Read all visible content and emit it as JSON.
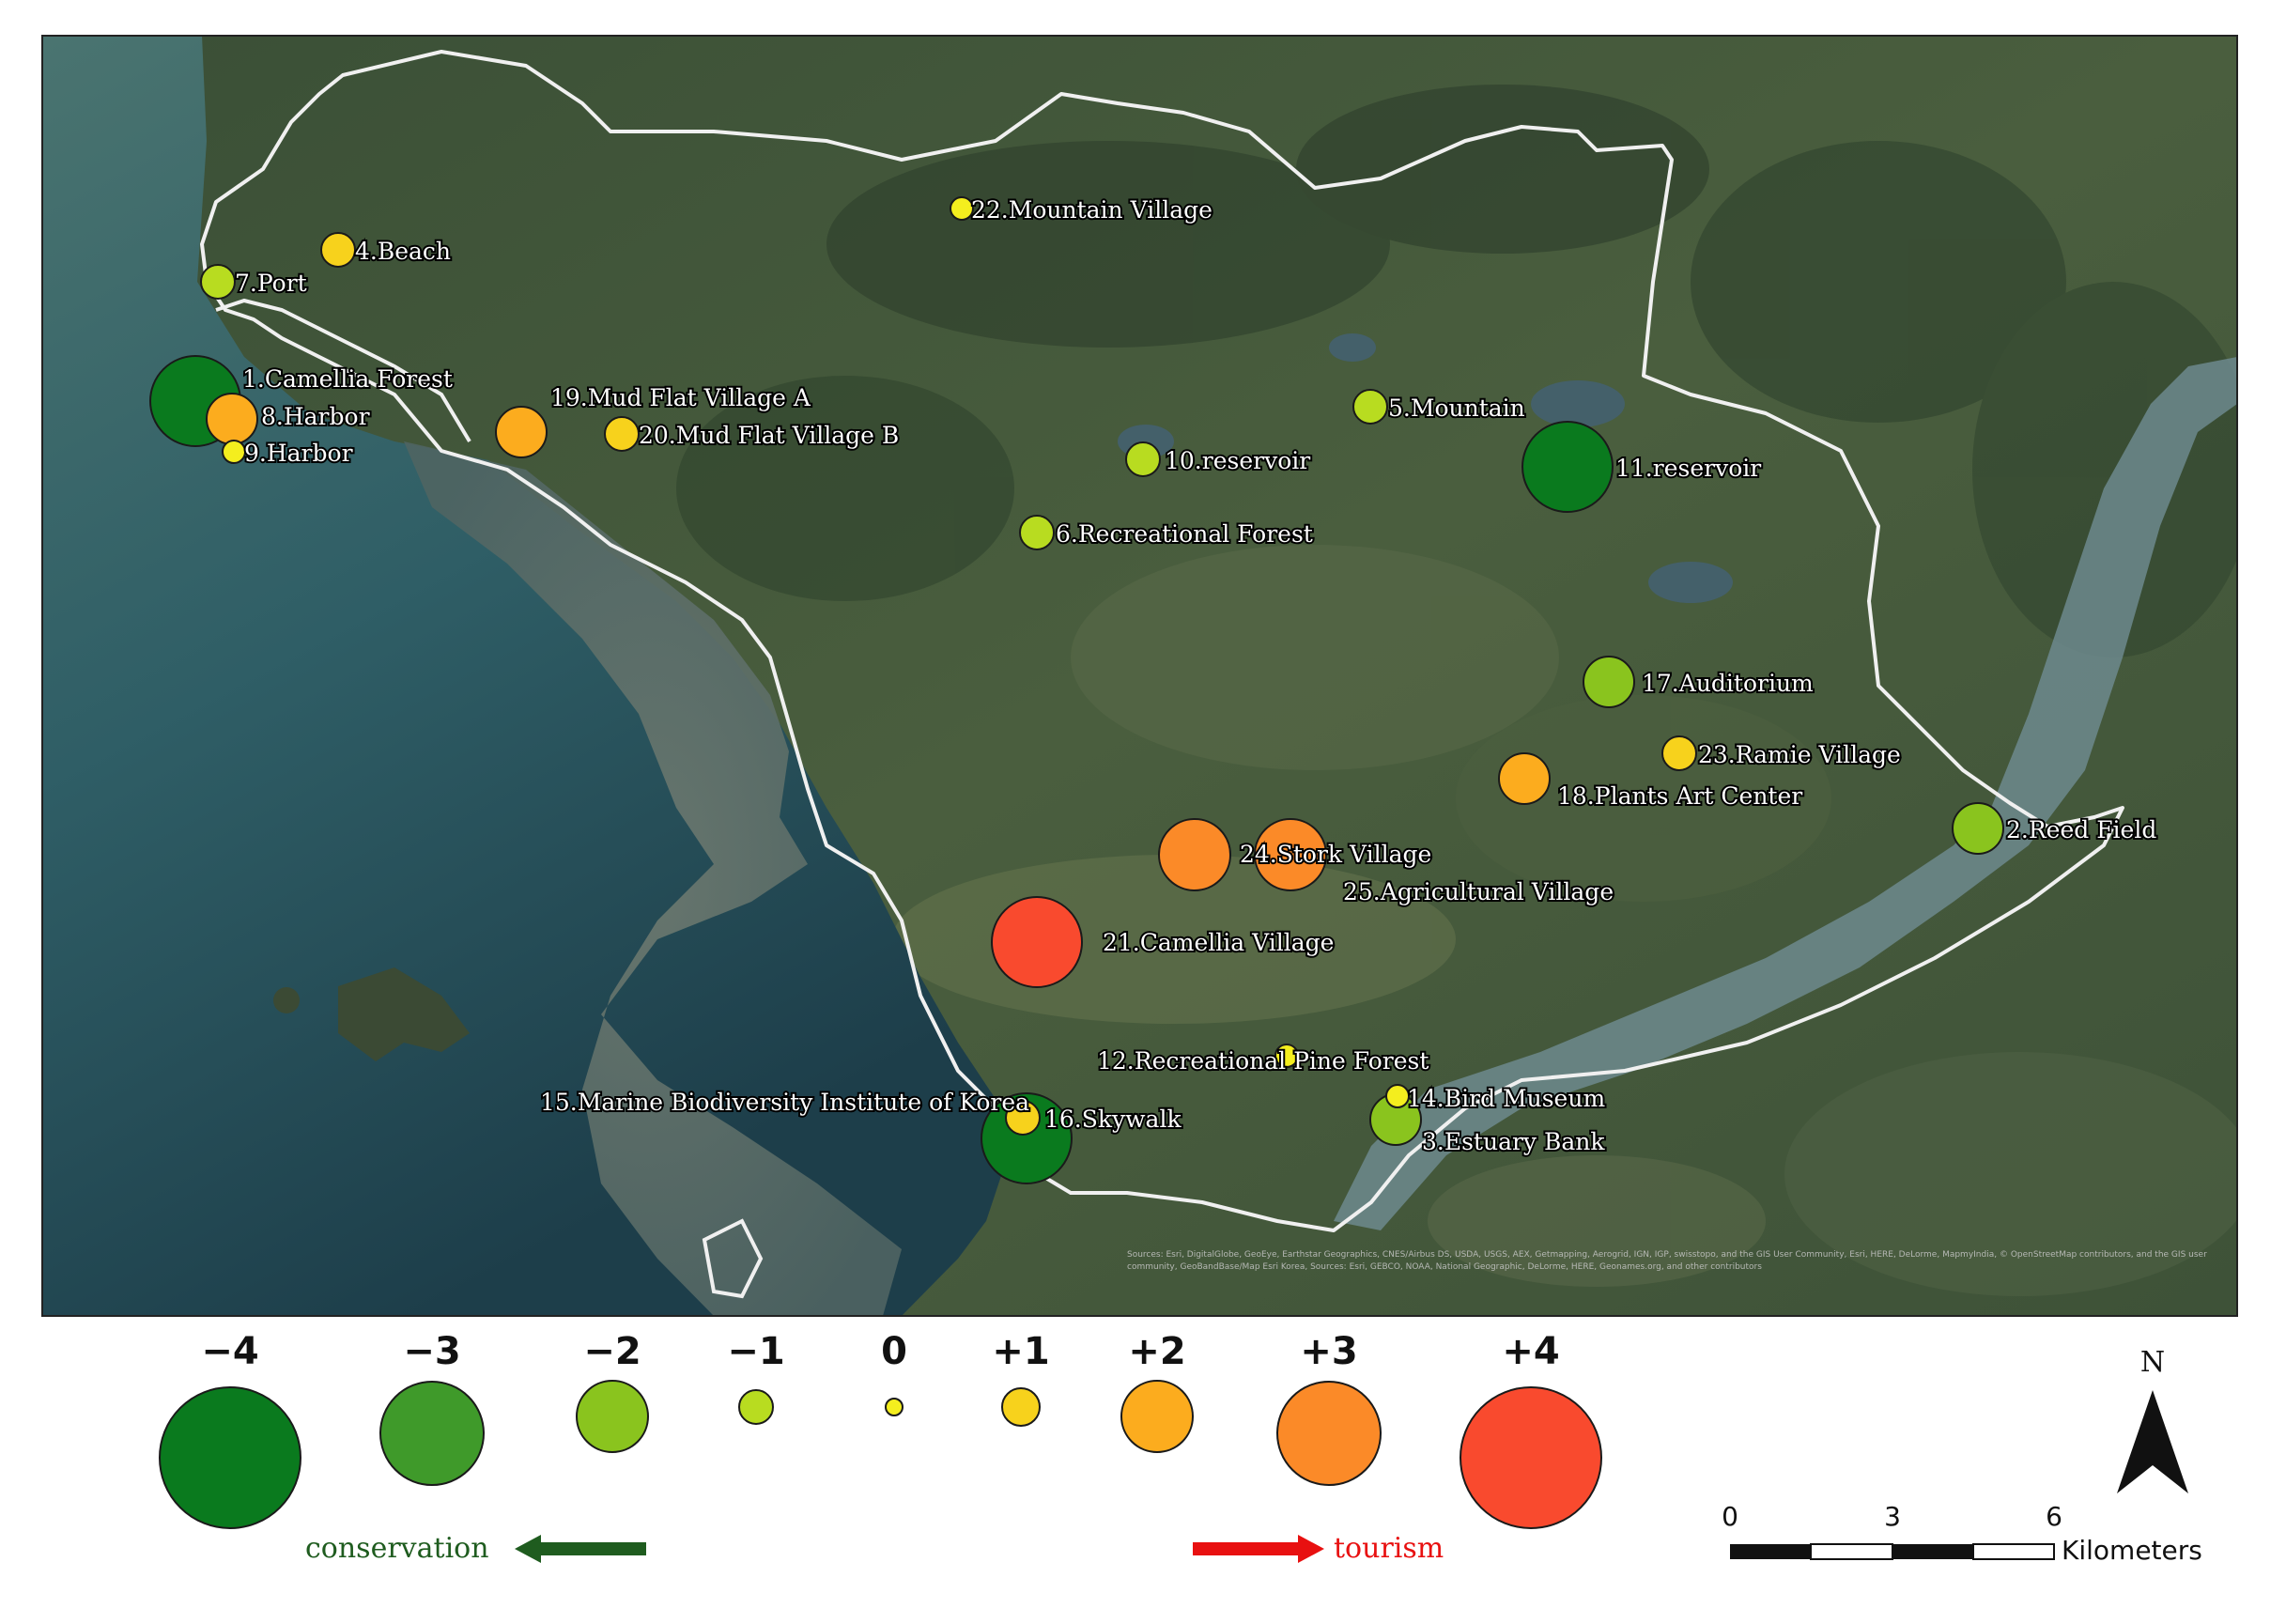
{
  "map": {
    "sites": [
      {
        "label": "1.Camellia Forest",
        "score": -4
      },
      {
        "label": "2.Reed Field",
        "score": -2
      },
      {
        "label": "3.Estuary Bank",
        "score": -2
      },
      {
        "label": "4.Beach",
        "score": 1
      },
      {
        "label": "5.Mountain",
        "score": -1
      },
      {
        "label": "6.Recreational Forest",
        "score": -1
      },
      {
        "label": "7.Port",
        "score": -1
      },
      {
        "label": "8.Harbor",
        "score": 2
      },
      {
        "label": "9.Harbor",
        "score": 0
      },
      {
        "label": "10.reservoir",
        "score": -1
      },
      {
        "label": "11.reservoir",
        "score": -4
      },
      {
        "label": "12.Recreational Pine Forest",
        "score": 0
      },
      {
        "label": "14.Bird Museum",
        "score": 0
      },
      {
        "label": "15.Marine Biodiversity Institute of Korea",
        "score": -4
      },
      {
        "label": "16.Skywalk",
        "score": 1
      },
      {
        "label": "17.Auditorium",
        "score": -2
      },
      {
        "label": "18.Plants Art Center",
        "score": 2
      },
      {
        "label": "19.Mud Flat Village A",
        "score": 2
      },
      {
        "label": "20.Mud Flat Village B",
        "score": 1
      },
      {
        "label": "21.Camellia Village",
        "score": 4
      },
      {
        "label": "22.Mountain Village",
        "score": 0
      },
      {
        "label": "23.Ramie Village",
        "score": 1
      },
      {
        "label": "24.Stork Village",
        "score": 3
      },
      {
        "label": "25.Agricultural Village",
        "score": 3
      }
    ],
    "attribution": "Sources: Esri, DigitalGlobe, GeoEye, Earthstar Geographics, CNES/Airbus DS, USDA, USGS, AEX, Getmapping, Aerogrid, IGN, IGP, swisstopo, and the GIS User Community, Esri, HERE, DeLorme, MapmyIndia, © OpenStreetMap contributors, and the GIS user community, GeoBandBase/Map Esri Korea, Sources: Esri, GEBCO, NOAA, National Geographic, DeLorme, HERE, Geonames.org, and other contributors"
  },
  "legend": {
    "items": [
      {
        "label": "−4",
        "value": -4,
        "color": "#0a7a1e"
      },
      {
        "label": "−3",
        "value": -3,
        "color": "#3f9a2a"
      },
      {
        "label": "−2",
        "value": -2,
        "color": "#8ac41e"
      },
      {
        "label": "−1",
        "value": -1,
        "color": "#b8dc20"
      },
      {
        "label": "0",
        "value": 0,
        "color": "#f4ee1e"
      },
      {
        "label": "+1",
        "value": 1,
        "color": "#f7d21c"
      },
      {
        "label": "+2",
        "value": 2,
        "color": "#fcac1e"
      },
      {
        "label": "+3",
        "value": 3,
        "color": "#fb8a28"
      },
      {
        "label": "+4",
        "value": 4,
        "color": "#f94a2e"
      }
    ],
    "conservation_label": "conservation",
    "tourism_label": "tourism",
    "conservation_color": "#1f5c1f",
    "tourism_color": "#e81010"
  },
  "north_arrow": {
    "label": "N"
  },
  "scale_bar": {
    "ticks": [
      "0",
      "3",
      "6"
    ],
    "unit": "Kilometers"
  }
}
